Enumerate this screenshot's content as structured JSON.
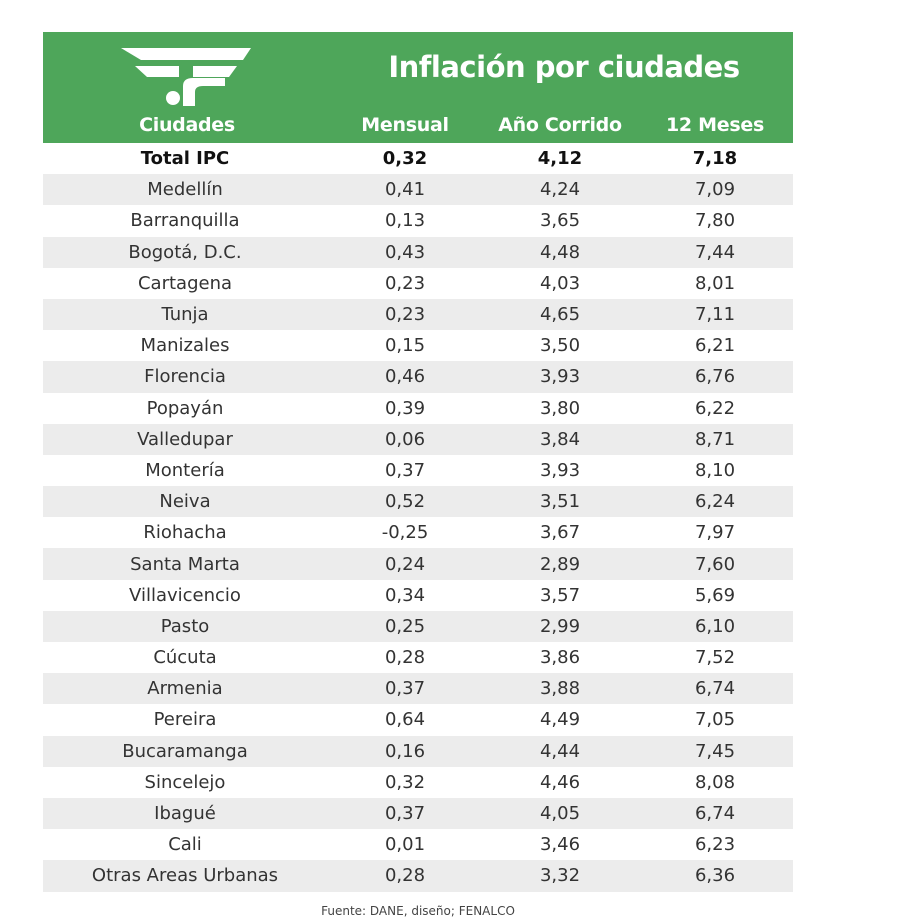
{
  "header": {
    "title": "Inflación por ciudades",
    "logo": "FENALCO",
    "columns": [
      "Ciudades",
      "Mensual",
      "Año Corrido",
      "12 Meses"
    ],
    "color": "#4ea65a"
  },
  "rows": [
    [
      "Total IPC",
      "0,32",
      "4,12",
      "7,18"
    ],
    [
      "Medellín",
      "0,41",
      "4,24",
      "7,09"
    ],
    [
      "Barranquilla",
      "0,13",
      "3,65",
      "7,80"
    ],
    [
      "Bogotá, D.C.",
      "0,43",
      "4,48",
      "7,44"
    ],
    [
      "Cartagena",
      "0,23",
      "4,03",
      "8,01"
    ],
    [
      "Tunja",
      "0,23",
      "4,65",
      "7,11"
    ],
    [
      "Manizales",
      "0,15",
      "3,50",
      "6,21"
    ],
    [
      "Florencia",
      "0,46",
      "3,93",
      "6,76"
    ],
    [
      "Popayán",
      "0,39",
      "3,80",
      "6,22"
    ],
    [
      "Valledupar",
      "0,06",
      "3,84",
      "8,71"
    ],
    [
      "Montería",
      "0,37",
      "3,93",
      "8,10"
    ],
    [
      "Neiva",
      "0,52",
      "3,51",
      "6,24"
    ],
    [
      "Riohacha",
      "-0,25",
      "3,67",
      "7,97"
    ],
    [
      "Santa Marta",
      "0,24",
      "2,89",
      "7,60"
    ],
    [
      "Villavicencio",
      "0,34",
      "3,57",
      "5,69"
    ],
    [
      "Pasto",
      "0,25",
      "2,99",
      "6,10"
    ],
    [
      "Cúcuta",
      "0,28",
      "3,86",
      "7,52"
    ],
    [
      "Armenia",
      "0,37",
      "3,88",
      "6,74"
    ],
    [
      "Pereira",
      "0,64",
      "4,49",
      "7,05"
    ],
    [
      "Bucaramanga",
      "0,16",
      "4,44",
      "7,45"
    ],
    [
      "Sincelejo",
      "0,32",
      "4,46",
      "8,08"
    ],
    [
      "Ibagué",
      "0,37",
      "4,05",
      "6,74"
    ],
    [
      "Cali",
      "0,01",
      "3,46",
      "6,23"
    ],
    [
      "Otras Areas Urbanas",
      "0,28",
      "3,32",
      "6,36"
    ]
  ],
  "footer": "Fuente: DANE, diseño; FENALCO"
}
